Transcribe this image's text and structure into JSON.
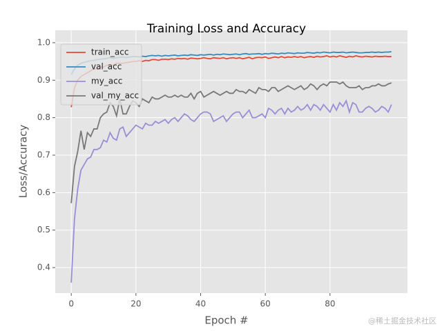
{
  "chart_data": {
    "type": "line",
    "title": "Training Loss and Accuracy",
    "xlabel": "Epoch #",
    "ylabel": "Loss/Accuracy",
    "watermark": "@稀土掘金技术社区",
    "x": [
      0,
      1,
      2,
      3,
      4,
      5,
      6,
      7,
      8,
      9,
      10,
      11,
      12,
      13,
      14,
      15,
      16,
      17,
      18,
      19,
      20,
      21,
      22,
      23,
      24,
      25,
      26,
      27,
      28,
      29,
      30,
      31,
      32,
      33,
      34,
      35,
      36,
      37,
      38,
      39,
      40,
      41,
      42,
      43,
      44,
      45,
      46,
      47,
      48,
      49,
      50,
      51,
      52,
      53,
      54,
      55,
      56,
      57,
      58,
      59,
      60,
      61,
      62,
      63,
      64,
      65,
      66,
      67,
      68,
      69,
      70,
      71,
      72,
      73,
      74,
      75,
      76,
      77,
      78,
      79,
      80,
      81,
      82,
      83,
      84,
      85,
      86,
      87,
      88,
      89,
      90,
      91,
      92,
      93,
      94,
      95,
      96,
      97,
      98,
      99
    ],
    "series": [
      {
        "name": "train_acc",
        "color": "#E24A33",
        "values": [
          0.828,
          0.88,
          0.9,
          0.91,
          0.915,
          0.92,
          0.925,
          0.93,
          0.93,
          0.935,
          0.935,
          0.94,
          0.94,
          0.94,
          0.945,
          0.945,
          0.945,
          0.947,
          0.948,
          0.95,
          0.95,
          0.952,
          0.95,
          0.953,
          0.952,
          0.955,
          0.955,
          0.953,
          0.956,
          0.956,
          0.955,
          0.957,
          0.956,
          0.958,
          0.957,
          0.958,
          0.956,
          0.959,
          0.958,
          0.957,
          0.958,
          0.96,
          0.958,
          0.957,
          0.96,
          0.959,
          0.958,
          0.96,
          0.957,
          0.959,
          0.96,
          0.958,
          0.96,
          0.957,
          0.959,
          0.961,
          0.957,
          0.96,
          0.961,
          0.96,
          0.962,
          0.958,
          0.96,
          0.962,
          0.96,
          0.963,
          0.96,
          0.962,
          0.961,
          0.963,
          0.961,
          0.963,
          0.96,
          0.962,
          0.963,
          0.961,
          0.964,
          0.962,
          0.963,
          0.965,
          0.962,
          0.964,
          0.962,
          0.965,
          0.963,
          0.961,
          0.964,
          0.962,
          0.965,
          0.963,
          0.962,
          0.964,
          0.963,
          0.962,
          0.964,
          0.963,
          0.963,
          0.964,
          0.963,
          0.963
        ]
      },
      {
        "name": "val_acc",
        "color": "#348ABD",
        "values": [
          0.915,
          0.93,
          0.94,
          0.945,
          0.948,
          0.95,
          0.952,
          0.953,
          0.955,
          0.956,
          0.957,
          0.958,
          0.96,
          0.958,
          0.96,
          0.961,
          0.962,
          0.96,
          0.962,
          0.963,
          0.963,
          0.962,
          0.964,
          0.963,
          0.965,
          0.966,
          0.965,
          0.966,
          0.964,
          0.966,
          0.965,
          0.966,
          0.967,
          0.965,
          0.966,
          0.967,
          0.966,
          0.968,
          0.967,
          0.966,
          0.968,
          0.967,
          0.968,
          0.969,
          0.967,
          0.969,
          0.968,
          0.97,
          0.969,
          0.968,
          0.969,
          0.97,
          0.968,
          0.97,
          0.971,
          0.969,
          0.97,
          0.97,
          0.971,
          0.969,
          0.971,
          0.97,
          0.972,
          0.971,
          0.97,
          0.972,
          0.971,
          0.973,
          0.972,
          0.971,
          0.973,
          0.972,
          0.972,
          0.974,
          0.973,
          0.972,
          0.974,
          0.973,
          0.975,
          0.974,
          0.973,
          0.975,
          0.974,
          0.974,
          0.975,
          0.973,
          0.974,
          0.975,
          0.974,
          0.973,
          0.973,
          0.974,
          0.974,
          0.975,
          0.974,
          0.975,
          0.974,
          0.975,
          0.975,
          0.976
        ]
      },
      {
        "name": "my_acc",
        "color": "#988ED5",
        "values": [
          0.36,
          0.53,
          0.61,
          0.66,
          0.675,
          0.69,
          0.695,
          0.715,
          0.715,
          0.72,
          0.74,
          0.735,
          0.76,
          0.745,
          0.74,
          0.77,
          0.775,
          0.75,
          0.76,
          0.77,
          0.78,
          0.775,
          0.77,
          0.785,
          0.78,
          0.78,
          0.79,
          0.785,
          0.79,
          0.795,
          0.785,
          0.795,
          0.8,
          0.79,
          0.8,
          0.81,
          0.805,
          0.795,
          0.79,
          0.8,
          0.81,
          0.815,
          0.815,
          0.81,
          0.79,
          0.795,
          0.8,
          0.805,
          0.79,
          0.8,
          0.81,
          0.815,
          0.815,
          0.8,
          0.81,
          0.82,
          0.8,
          0.8,
          0.805,
          0.81,
          0.8,
          0.825,
          0.82,
          0.81,
          0.82,
          0.825,
          0.81,
          0.825,
          0.815,
          0.82,
          0.83,
          0.82,
          0.825,
          0.835,
          0.82,
          0.835,
          0.83,
          0.82,
          0.835,
          0.825,
          0.815,
          0.835,
          0.82,
          0.84,
          0.83,
          0.845,
          0.815,
          0.84,
          0.835,
          0.815,
          0.815,
          0.825,
          0.83,
          0.825,
          0.815,
          0.82,
          0.83,
          0.825,
          0.815,
          0.835
        ]
      },
      {
        "name": "val_my_acc",
        "color": "#777777",
        "values": [
          0.572,
          0.67,
          0.71,
          0.765,
          0.715,
          0.76,
          0.75,
          0.77,
          0.77,
          0.8,
          0.81,
          0.815,
          0.84,
          0.83,
          0.805,
          0.85,
          0.81,
          0.81,
          0.83,
          0.845,
          0.84,
          0.83,
          0.85,
          0.845,
          0.84,
          0.855,
          0.85,
          0.85,
          0.855,
          0.86,
          0.855,
          0.855,
          0.86,
          0.855,
          0.86,
          0.855,
          0.855,
          0.865,
          0.85,
          0.865,
          0.87,
          0.855,
          0.86,
          0.865,
          0.87,
          0.865,
          0.86,
          0.865,
          0.87,
          0.865,
          0.865,
          0.875,
          0.87,
          0.87,
          0.865,
          0.875,
          0.87,
          0.865,
          0.88,
          0.875,
          0.875,
          0.87,
          0.88,
          0.88,
          0.87,
          0.875,
          0.88,
          0.885,
          0.88,
          0.875,
          0.88,
          0.885,
          0.875,
          0.88,
          0.89,
          0.885,
          0.875,
          0.885,
          0.89,
          0.885,
          0.895,
          0.895,
          0.895,
          0.89,
          0.895,
          0.885,
          0.88,
          0.88,
          0.88,
          0.885,
          0.875,
          0.88,
          0.88,
          0.885,
          0.885,
          0.89,
          0.885,
          0.885,
          0.89,
          0.893
        ]
      }
    ],
    "xlim": [
      -4.95,
      103.95
    ],
    "xticks": [
      0,
      20,
      40,
      60,
      80
    ],
    "ylim": [
      0.332,
      1.033
    ],
    "yticks": [
      0.4,
      0.5,
      0.6,
      0.7,
      0.8,
      0.9,
      {
        "value": 1,
        "label": "1.0"
      }
    ],
    "grid": true,
    "legend": "upper left"
  }
}
